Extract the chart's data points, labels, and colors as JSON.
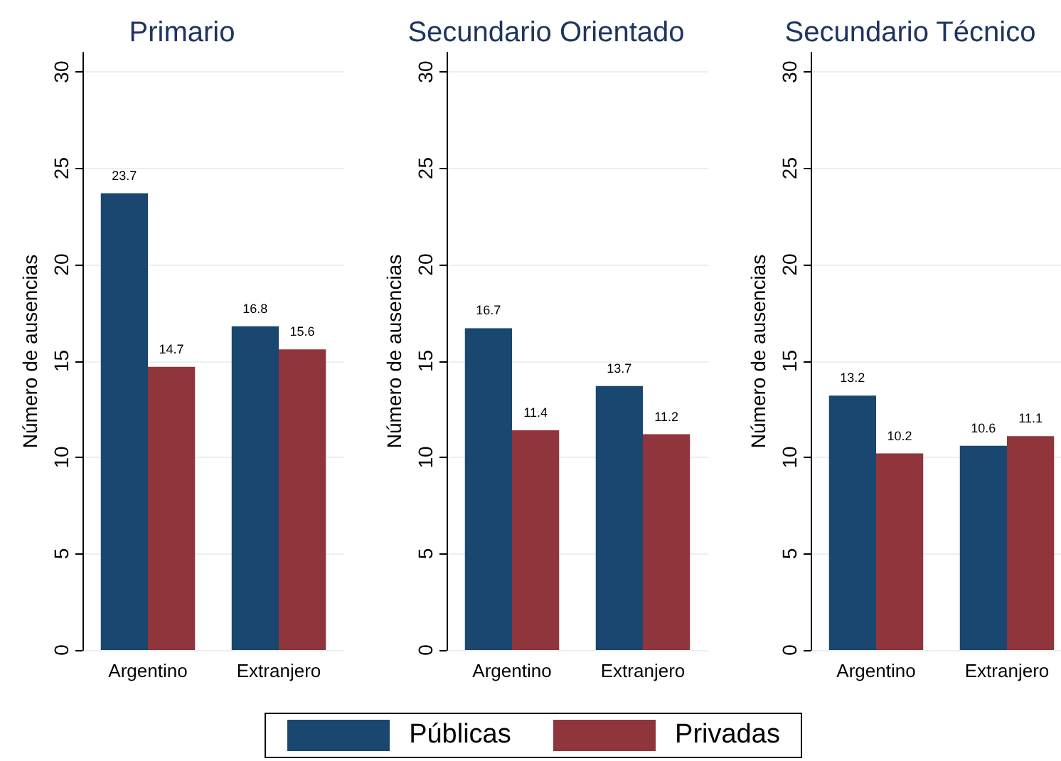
{
  "chart_data": [
    {
      "type": "bar",
      "title": "Primario",
      "ylabel": "Número de ausencias",
      "categories": [
        "Argentino",
        "Extranjero"
      ],
      "series": [
        {
          "name": "Públicas",
          "color": "#1a476f",
          "values": [
            23.7,
            16.8
          ]
        },
        {
          "name": "Privadas",
          "color": "#90353b",
          "values": [
            14.7,
            15.6
          ]
        }
      ],
      "ylim": [
        0,
        31
      ],
      "yticks": [
        0,
        5,
        10,
        15,
        20,
        25,
        30
      ],
      "grid": "y",
      "data_labels": true,
      "legend": "bottom"
    },
    {
      "type": "bar",
      "title": "Secundario Orientado",
      "ylabel": "Número de ausencias",
      "categories": [
        "Argentino",
        "Extranjero"
      ],
      "series": [
        {
          "name": "Públicas",
          "color": "#1a476f",
          "values": [
            16.7,
            13.7
          ]
        },
        {
          "name": "Privadas",
          "color": "#90353b",
          "values": [
            11.4,
            11.2
          ]
        }
      ],
      "ylim": [
        0,
        31
      ],
      "yticks": [
        0,
        5,
        10,
        15,
        20,
        25,
        30
      ],
      "grid": "y",
      "data_labels": true,
      "legend": "bottom"
    },
    {
      "type": "bar",
      "title": "Secundario Técnico",
      "ylabel": "Número de ausencias",
      "categories": [
        "Argentino",
        "Extranjero"
      ],
      "series": [
        {
          "name": "Públicas",
          "color": "#1a476f",
          "values": [
            13.2,
            10.6
          ]
        },
        {
          "name": "Privadas",
          "color": "#90353b",
          "values": [
            10.2,
            11.1
          ]
        }
      ],
      "ylim": [
        0,
        31
      ],
      "yticks": [
        0,
        5,
        10,
        15,
        20,
        25,
        30
      ],
      "grid": "y",
      "data_labels": true,
      "legend": "bottom"
    }
  ]
}
